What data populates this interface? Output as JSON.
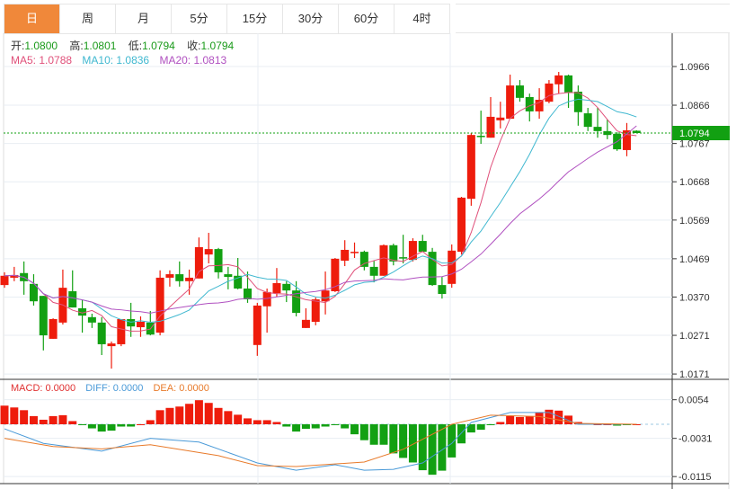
{
  "tabs": [
    {
      "label": "日",
      "active": true
    },
    {
      "label": "周"
    },
    {
      "label": "月"
    },
    {
      "label": "5分"
    },
    {
      "label": "15分"
    },
    {
      "label": "30分"
    },
    {
      "label": "60分"
    },
    {
      "label": "4时"
    }
  ],
  "info": {
    "open_label": "开:",
    "open": "1.0800",
    "high_label": "高:",
    "high": "1.0801",
    "low_label": "低:",
    "low": "1.0794",
    "close_label": "收:",
    "close": "1.0794",
    "ma5": "MA5: 1.0788",
    "ma10": "MA10: 1.0836",
    "ma20": "MA20: 1.0813"
  },
  "macd_legend": {
    "macd": "MACD: 0.0000",
    "diff": "DIFF: 0.0000",
    "dea": "DEA: 0.0000"
  },
  "colors": {
    "up": "#ee1c0c",
    "down": "#12a012",
    "ma5": "#e0507a",
    "ma10": "#40b8d0",
    "ma20": "#b050c0",
    "diff": "#4a9ad8",
    "dea": "#e87a2a",
    "accent": "#f0883a"
  },
  "chart_data": [
    {
      "type": "candlestick",
      "price_axis_ticks": [
        "1.0966",
        "1.0866",
        "1.0767",
        "1.0668",
        "1.0569",
        "1.0469",
        "1.0370",
        "1.0271",
        "1.0171"
      ],
      "ylim": [
        1.013,
        1.103
      ],
      "current_price": "1.0794",
      "ohlc": [
        [
          1.0401,
          1.0434,
          1.0394,
          1.0425
        ],
        [
          1.042,
          1.0448,
          1.0411,
          1.0427
        ],
        [
          1.0432,
          1.0462,
          1.0376,
          1.0411
        ],
        [
          1.0404,
          1.0429,
          1.0348,
          1.0359
        ],
        [
          1.0373,
          1.0373,
          1.0232,
          1.0271
        ],
        [
          1.0262,
          1.0315,
          1.0262,
          1.0313
        ],
        [
          1.0304,
          1.0441,
          1.0299,
          1.0394
        ],
        [
          1.0385,
          1.0439,
          1.0343,
          1.0343
        ],
        [
          1.0341,
          1.0362,
          1.0278,
          1.0322
        ],
        [
          1.0318,
          1.0327,
          1.029,
          1.0304
        ],
        [
          1.0304,
          1.0318,
          1.022,
          1.0248
        ],
        [
          1.0243,
          1.0255,
          1.0185,
          1.025
        ],
        [
          1.0248,
          1.0313,
          1.0243,
          1.0313
        ],
        [
          1.0313,
          1.0355,
          1.0267,
          1.0294
        ],
        [
          1.0292,
          1.032,
          1.0267,
          1.0306
        ],
        [
          1.0304,
          1.0334,
          1.0271,
          1.0273
        ],
        [
          1.0278,
          1.0439,
          1.0271,
          1.042
        ],
        [
          1.042,
          1.0439,
          1.0397,
          1.0429
        ],
        [
          1.0429,
          1.0462,
          1.0397,
          1.0411
        ],
        [
          1.0411,
          1.0441,
          1.0376,
          1.042
        ],
        [
          1.0418,
          1.0524,
          1.0418,
          1.0499
        ],
        [
          1.048,
          1.0536,
          1.0457,
          1.0494
        ],
        [
          1.0494,
          1.0497,
          1.0418,
          1.0434
        ],
        [
          1.0429,
          1.0448,
          1.039,
          1.0422
        ],
        [
          1.0425,
          1.0471,
          1.039,
          1.0392
        ],
        [
          1.0392,
          1.0436,
          1.0355,
          1.0364
        ],
        [
          1.0246,
          1.0355,
          1.0218,
          1.0348
        ],
        [
          1.0346,
          1.0392,
          1.0278,
          1.0383
        ],
        [
          1.038,
          1.0445,
          1.0371,
          1.0406
        ],
        [
          1.0404,
          1.0411,
          1.0357,
          1.0387
        ],
        [
          1.0387,
          1.0411,
          1.032,
          1.0329
        ],
        [
          1.029,
          1.0341,
          1.029,
          1.0311
        ],
        [
          1.0306,
          1.0369,
          1.0297,
          1.0364
        ],
        [
          1.0359,
          1.0436,
          1.0325,
          1.0387
        ],
        [
          1.0385,
          1.0471,
          1.0383,
          1.0469
        ],
        [
          1.0464,
          1.0517,
          1.045,
          1.0492
        ],
        [
          1.0485,
          1.0511,
          1.0471,
          1.0487
        ],
        [
          1.0487,
          1.049,
          1.0439,
          1.0448
        ],
        [
          1.0448,
          1.0464,
          1.0408,
          1.0425
        ],
        [
          1.0425,
          1.0506,
          1.0425,
          1.0504
        ],
        [
          1.0504,
          1.0508,
          1.0452,
          1.0462
        ],
        [
          1.0473,
          1.0531,
          1.0457,
          1.0471
        ],
        [
          1.0466,
          1.0522,
          1.0462,
          1.0515
        ],
        [
          1.0515,
          1.0531,
          1.0487,
          1.0487
        ],
        [
          1.0487,
          1.0497,
          1.0399,
          1.0401
        ],
        [
          1.0401,
          1.0422,
          1.0366,
          1.0378
        ],
        [
          1.0404,
          1.0506,
          1.0394,
          1.049
        ],
        [
          1.0487,
          1.0629,
          1.048,
          1.0627
        ],
        [
          1.0624,
          1.0794,
          1.0606,
          1.0789
        ],
        [
          1.0787,
          1.0852,
          1.0766,
          1.0785
        ],
        [
          1.0782,
          1.0887,
          1.0782,
          1.0836
        ],
        [
          1.0827,
          1.0875,
          1.0806,
          1.0834
        ],
        [
          1.0831,
          1.0945,
          1.0831,
          1.0917
        ],
        [
          1.0917,
          1.0931,
          1.0875,
          1.0885
        ],
        [
          1.0887,
          1.0896,
          1.0824,
          1.085
        ],
        [
          1.085,
          1.091,
          1.0831,
          1.088
        ],
        [
          1.0875,
          1.0931,
          1.0871,
          1.0922
        ],
        [
          1.092,
          1.0952,
          1.0896,
          1.0943
        ],
        [
          1.0943,
          1.0945,
          1.0859,
          1.0899
        ],
        [
          1.0901,
          1.0917,
          1.0813,
          1.0848
        ],
        [
          1.0845,
          1.0859,
          1.0799,
          1.081
        ],
        [
          1.081,
          1.0859,
          1.0782,
          1.0799
        ],
        [
          1.0799,
          1.0829,
          1.0778,
          1.0789
        ],
        [
          1.0792,
          1.0796,
          1.0748,
          1.0752
        ],
        [
          1.075,
          1.082,
          1.0734,
          1.0801
        ],
        [
          1.08,
          1.0801,
          1.0794,
          1.0794
        ]
      ],
      "moving_averages": [
        "MA5",
        "MA10",
        "MA20"
      ]
    },
    {
      "type": "bar+line",
      "indicator": "MACD",
      "axis_ticks": [
        "0.0054",
        "-0.0031",
        "-0.0115"
      ],
      "ylim": [
        -0.0128,
        0.0072
      ],
      "histogram": [
        0.0041,
        0.0037,
        0.0031,
        0.0018,
        0.001,
        0.0018,
        0.002,
        0.0007,
        -0.0001,
        -0.0009,
        -0.0016,
        -0.0014,
        -0.0005,
        -0.0005,
        0.0,
        0.0009,
        0.0031,
        0.0036,
        0.0039,
        0.0045,
        0.0053,
        0.0047,
        0.0036,
        0.0029,
        0.0021,
        0.0013,
        0.0009,
        0.0009,
        0.0005,
        -0.0005,
        -0.0016,
        -0.001,
        -0.0009,
        -0.0005,
        -0.0002,
        -0.0009,
        -0.0022,
        -0.0035,
        -0.0045,
        -0.0045,
        -0.0064,
        -0.0074,
        -0.0084,
        -0.0101,
        -0.0111,
        -0.0102,
        -0.0073,
        -0.0042,
        -0.0018,
        -0.0012,
        -0.0002,
        0.0005,
        0.0018,
        0.0016,
        0.0018,
        0.0026,
        0.0032,
        0.003,
        0.0019,
        0.0005,
        0.0001,
        0.0,
        0.0,
        -0.0003,
        -0.0001,
        0.0
      ],
      "diff": [
        [
          0,
          -0.001
        ],
        [
          4,
          -0.0042
        ],
        [
          10,
          -0.0059
        ],
        [
          15,
          -0.0031
        ],
        [
          20,
          -0.0039
        ],
        [
          26,
          -0.0085
        ],
        [
          30,
          -0.0101
        ],
        [
          34,
          -0.0089
        ],
        [
          37,
          -0.0101
        ],
        [
          40,
          -0.0099
        ],
        [
          43,
          -0.0085
        ],
        [
          46,
          -0.0042
        ],
        [
          48,
          0.0004
        ],
        [
          52,
          0.0026
        ],
        [
          56,
          0.0026
        ],
        [
          59,
          0.0
        ],
        [
          65,
          0.0
        ]
      ],
      "dea": [
        [
          0,
          -0.0031
        ],
        [
          5,
          -0.0049
        ],
        [
          10,
          -0.0054
        ],
        [
          15,
          -0.0045
        ],
        [
          22,
          -0.0069
        ],
        [
          26,
          -0.0091
        ],
        [
          30,
          -0.0093
        ],
        [
          37,
          -0.0083
        ],
        [
          41,
          -0.0055
        ],
        [
          46,
          0.0
        ],
        [
          50,
          0.002
        ],
        [
          55,
          0.0017
        ],
        [
          59,
          0.0002
        ],
        [
          65,
          0.0
        ]
      ]
    }
  ]
}
